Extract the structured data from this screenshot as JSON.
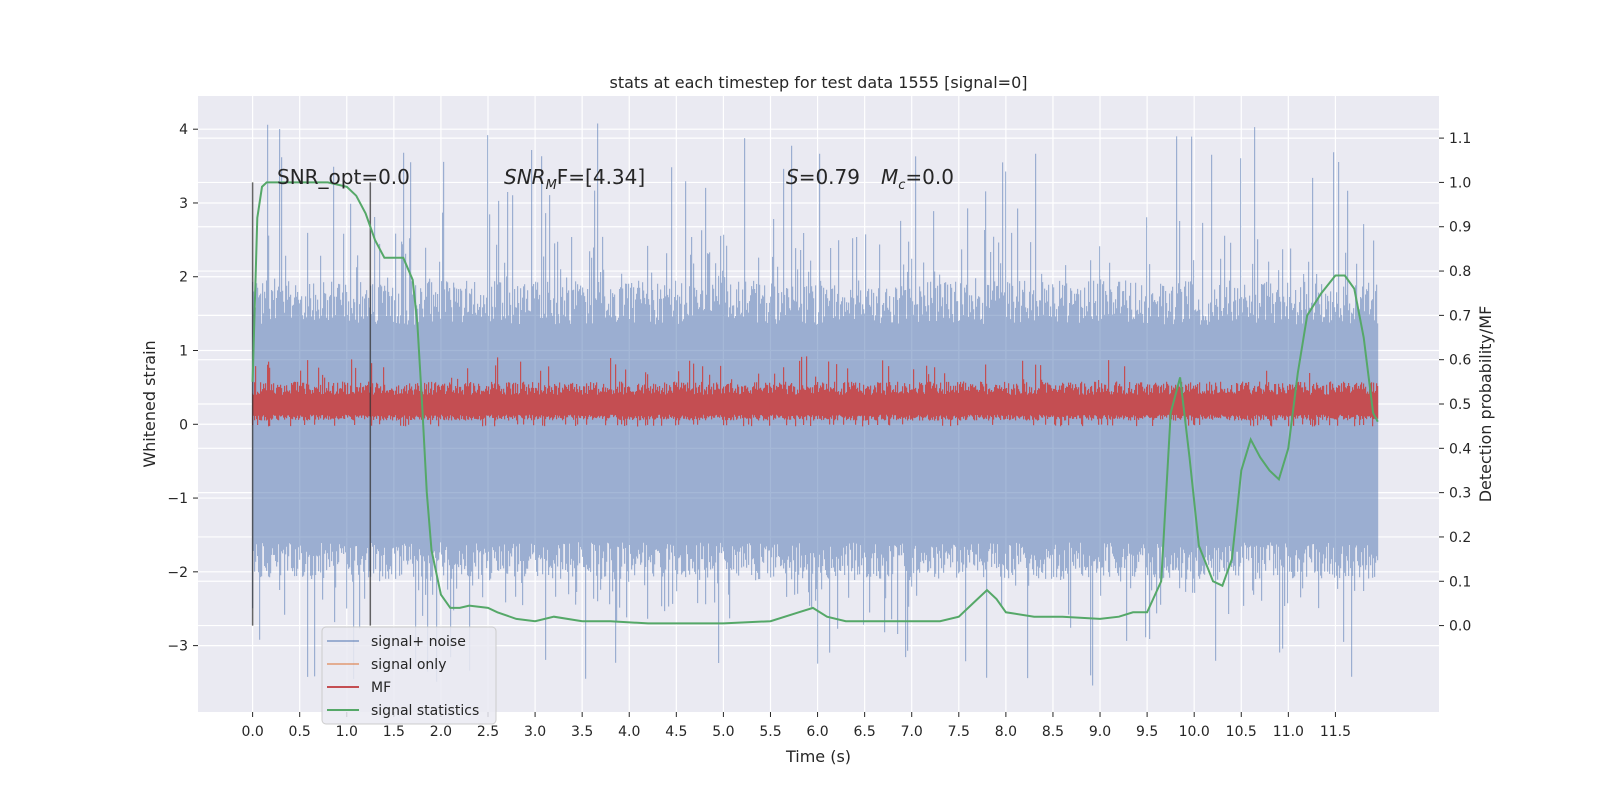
{
  "chart_data": {
    "type": "line",
    "title": "stats at each timestep for test data 1555 [signal=0]",
    "xlabel": "Time (s)",
    "ylabel": "Whitened strain",
    "y2label": "Detection probability/MF",
    "xlim": [
      -0.58,
      12.6
    ],
    "ylim": [
      -3.9,
      4.45
    ],
    "y2lim": [
      -0.195,
      1.195
    ],
    "x_ticks": [
      "0.0",
      "0.5",
      "1.0",
      "1.5",
      "2.0",
      "2.5",
      "3.0",
      "3.5",
      "4.0",
      "4.5",
      "5.0",
      "5.5",
      "6.0",
      "6.5",
      "7.0",
      "7.5",
      "8.0",
      "8.5",
      "9.0",
      "9.5",
      "10.0",
      "10.5",
      "11.0",
      "11.5"
    ],
    "y_ticks": [
      "4",
      "3",
      "2",
      "1",
      "0",
      "−1",
      "−2",
      "−3"
    ],
    "y2_ticks": [
      "1.1",
      "1.0",
      "0.9",
      "0.8",
      "0.7",
      "0.6",
      "0.5",
      "0.4",
      "0.3",
      "0.2",
      "0.1",
      "0.0"
    ],
    "grid": true,
    "legend_position": "lower-left",
    "annotations": {
      "snr_opt": "SNR_opt=0.0",
      "snr_mf_italic": "SNR",
      "snr_mf_sub": "M",
      "snr_mf_rest": "F=[4.34]",
      "s_italic": "S",
      "s_rest": "=0.79",
      "mc_italic": "M",
      "mc_sub": "c",
      "mc_rest": "=0.0"
    },
    "vertical_lines": [
      0.0,
      1.25
    ],
    "noise": {
      "t_range": [
        0.0,
        11.95
      ],
      "band_low": -1.5,
      "band_high": 1.55,
      "spike_max": 4.1,
      "spike_min": -3.55
    },
    "mf": {
      "t_range": [
        0.0,
        11.95
      ],
      "band_low": 0.05,
      "band_high": 0.5,
      "spike_max": 0.92
    },
    "series": [
      {
        "name": "signal+ noise",
        "color": "#4c72b0"
      },
      {
        "name": "signal only",
        "color": "#dd8452"
      },
      {
        "name": "MF",
        "color": "#c44e52"
      },
      {
        "name": "signal statistics",
        "color": "#55a868",
        "x": [
          0.0,
          0.05,
          0.1,
          0.15,
          0.2,
          0.3,
          0.5,
          0.8,
          1.0,
          1.1,
          1.2,
          1.3,
          1.4,
          1.5,
          1.6,
          1.7,
          1.75,
          1.8,
          1.85,
          1.9,
          2.0,
          2.1,
          2.2,
          2.3,
          2.5,
          2.6,
          2.8,
          3.0,
          3.2,
          3.5,
          3.8,
          4.2,
          4.5,
          5.0,
          5.5,
          5.8,
          5.95,
          6.1,
          6.3,
          6.6,
          7.0,
          7.3,
          7.5,
          7.65,
          7.8,
          7.9,
          8.0,
          8.3,
          8.6,
          9.0,
          9.2,
          9.35,
          9.5,
          9.65,
          9.75,
          9.85,
          9.95,
          10.05,
          10.2,
          10.3,
          10.4,
          10.5,
          10.6,
          10.7,
          10.8,
          10.9,
          11.0,
          11.1,
          11.2,
          11.35,
          11.5,
          11.6,
          11.7,
          11.8,
          11.9,
          11.95
        ],
        "y": [
          0.55,
          0.92,
          0.99,
          1.0,
          1.0,
          1.0,
          1.0,
          1.0,
          0.99,
          0.97,
          0.93,
          0.87,
          0.83,
          0.83,
          0.83,
          0.78,
          0.68,
          0.5,
          0.3,
          0.17,
          0.07,
          0.04,
          0.04,
          0.045,
          0.04,
          0.03,
          0.015,
          0.01,
          0.02,
          0.01,
          0.01,
          0.005,
          0.005,
          0.005,
          0.01,
          0.03,
          0.04,
          0.02,
          0.01,
          0.01,
          0.01,
          0.01,
          0.02,
          0.05,
          0.08,
          0.06,
          0.03,
          0.02,
          0.02,
          0.015,
          0.02,
          0.03,
          0.03,
          0.1,
          0.48,
          0.56,
          0.38,
          0.18,
          0.1,
          0.09,
          0.15,
          0.35,
          0.42,
          0.38,
          0.35,
          0.33,
          0.4,
          0.57,
          0.7,
          0.75,
          0.79,
          0.79,
          0.76,
          0.65,
          0.48,
          0.46
        ]
      }
    ]
  }
}
